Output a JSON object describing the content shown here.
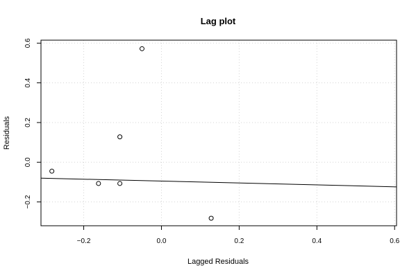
{
  "chart_data": {
    "type": "scatter",
    "title": "Lag plot",
    "xlabel": "Lagged Residuals",
    "ylabel": "Residuals",
    "xlim": [
      -0.31,
      0.605
    ],
    "ylim": [
      -0.32,
      0.615
    ],
    "x_ticks": [
      -0.2,
      0.0,
      0.2,
      0.4,
      0.6
    ],
    "x_tick_labels": [
      "−0.2",
      "0.0",
      "0.2",
      "0.4",
      "0.6"
    ],
    "y_ticks": [
      -0.2,
      0.0,
      0.2,
      0.4,
      0.6
    ],
    "y_tick_labels": [
      "−0.2",
      "0.0",
      "0.2",
      "0.4",
      "0.6"
    ],
    "grid": true,
    "points": [
      {
        "x": -0.282,
        "y": -0.045
      },
      {
        "x": -0.162,
        "y": -0.107
      },
      {
        "x": -0.107,
        "y": -0.107
      },
      {
        "x": -0.107,
        "y": 0.128
      },
      {
        "x": -0.05,
        "y": 0.572
      },
      {
        "x": 0.128,
        "y": -0.282
      }
    ],
    "fit_line": {
      "intercept": -0.095,
      "slope": -0.048
    },
    "colors": {
      "points": "#000000",
      "line": "#000000",
      "grid": "#d3d3d3"
    }
  }
}
